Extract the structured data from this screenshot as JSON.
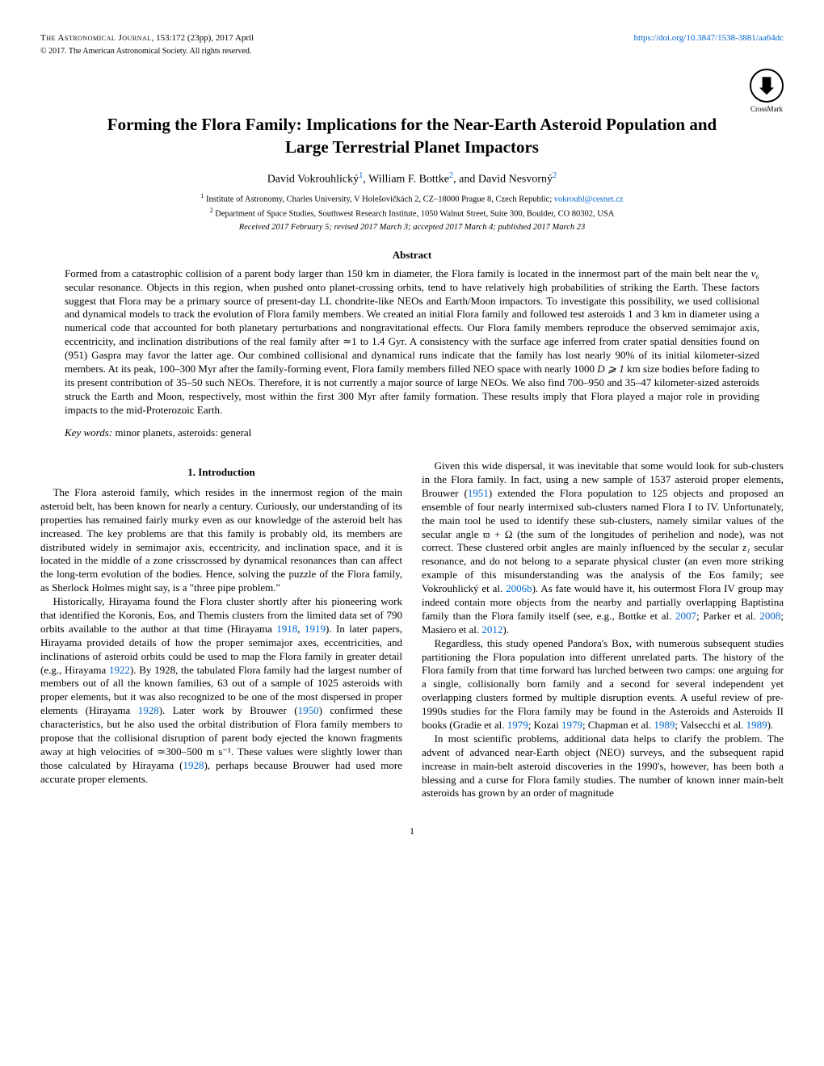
{
  "header": {
    "journal": "The Astronomical Journal",
    "citation": ", 153:172 (23pp), 2017 April",
    "doi_url": "https://doi.org/10.3847/1538-3881/aa64dc",
    "copyright": "© 2017. The American Astronomical Society. All rights reserved.",
    "crossmark_label": "CrossMark"
  },
  "title": "Forming the Flora Family: Implications for the Near-Earth Asteroid Population and Large Terrestrial Planet Impactors",
  "authors": {
    "a1": "David Vokrouhlický",
    "a1_sup": "1",
    "a2": ", William F. Bottke",
    "a2_sup": "2",
    "a3": ", and David Nesvorný",
    "a3_sup": "2"
  },
  "affiliations": {
    "aff1_sup": "1",
    "aff1": " Institute of Astronomy, Charles University, V Holešovičkách 2, CZ–18000 Prague 8, Czech Republic; ",
    "aff1_email": "vokrouhl@cesnet.cz",
    "aff2_sup": "2",
    "aff2": " Department of Space Studies, Southwest Research Institute, 1050 Walnut Street, Suite 300, Boulder, CO 80302, USA"
  },
  "dates": "Received 2017 February 5; revised 2017 March 3; accepted 2017 March 4; published 2017 March 23",
  "abstract": {
    "heading": "Abstract",
    "text_1": "Formed from a catastrophic collision of a parent body larger than 150 km in diameter, the Flora family is located in the innermost part of the main belt near the ",
    "nu6": "ν₆",
    "text_2": " secular resonance. Objects in this region, when pushed onto planet-crossing orbits, tend to have relatively high probabilities of striking the Earth. These factors suggest that Flora may be a primary source of present-day LL chondrite-like NEOs and Earth/Moon impactors. To investigate this possibility, we used collisional and dynamical models to track the evolution of Flora family members. We created an initial Flora family and followed test asteroids 1 and 3 km in diameter using a numerical code that accounted for both planetary perturbations and nongravitational effects. Our Flora family members reproduce the observed semimajor axis, eccentricity, and inclination distributions of the real family after ≃1 to 1.4 Gyr. A consistency with the surface age inferred from crater spatial densities found on (951) Gaspra may favor the latter age. Our combined collisional and dynamical runs indicate that the family has lost nearly 90% of its initial kilometer-sized members. At its peak, 100–300 Myr after the family-forming event, Flora family members filled NEO space with nearly 1000 ",
    "d_ge": "D ⩾ 1",
    "text_3": " km size bodies before fading to its present contribution of 35–50 such NEOs. Therefore, it is not currently a major source of large NEOs. We also find 700–950 and 35–47 kilometer-sized asteroids struck the Earth and Moon, respectively, most within the first 300 Myr after family formation. These results imply that Flora played a major role in providing impacts to the mid-Proterozoic Earth."
  },
  "keywords": {
    "label": "Key words:",
    "text": " minor planets, asteroids: general"
  },
  "section1_heading": "1. Introduction",
  "body": {
    "p1": "The Flora asteroid family, which resides in the innermost region of the main asteroid belt, has been known for nearly a century. Curiously, our understanding of its properties has remained fairly murky even as our knowledge of the asteroid belt has increased. The key problems are that this family is probably old, its members are distributed widely in semimajor axis, eccentricity, and inclination space, and it is located in the middle of a zone crisscrossed by dynamical resonances than can affect the long-term evolution of the bodies. Hence, solving the puzzle of the Flora family, as Sherlock Holmes might say, is a \"three pipe problem.\"",
    "p2_a": "Historically, Hirayama found the Flora cluster shortly after his pioneering work that identified the Koronis, Eos, and Themis clusters from the limited data set of 790 orbits available to the author at that time (Hirayama ",
    "p2_y1": "1918",
    "p2_b": ", ",
    "p2_y2": "1919",
    "p2_c": "). In later papers, Hirayama provided details of how the proper semimajor axes, eccentricities, and inclinations of asteroid orbits could be used to map the Flora family in greater detail (e.g., Hirayama ",
    "p2_y3": "1922",
    "p2_d": "). By 1928, the tabulated Flora family had the largest number of members out of all the known families, 63 out of a sample of 1025 asteroids with proper elements, but it was also recognized to be one of the most dispersed in proper elements (Hirayama ",
    "p2_y4": "1928",
    "p2_e": "). Later work by Brouwer (",
    "p2_y5": "1950",
    "p2_f": ") confirmed these characteristics, but he also used the orbital distribution of Flora family members to propose that the collisional disruption of parent body ejected the known fragments away at high velocities of ≃300–500 m s⁻¹. These values were slightly lower than those calculated by Hirayama (",
    "p2_y6": "1928",
    "p2_g": "), perhaps because Brouwer had used more accurate proper elements.",
    "p3_a": "Given this wide dispersal, it was inevitable that some would look for sub-clusters in the Flora family. In fact, using a new sample of 1537 asteroid proper elements, Brouwer (",
    "p3_y1": "1951",
    "p3_b": ") extended the Flora population to 125 objects and proposed an ensemble of four nearly intermixed sub-clusters named Flora I to IV. Unfortunately, the main tool he used to identify these sub-clusters, namely similar values of the secular angle ϖ + Ω (the sum of the longitudes of perihelion and node), was not correct. These clustered orbit angles are mainly influenced by the secular ",
    "p3_z1": "z₁",
    "p3_c": " secular resonance, and do not belong to a separate physical cluster (an even more striking example of this misunderstanding was the analysis of the Eos family; see Vokrouhlický et al. ",
    "p3_y2": "2006b",
    "p3_d": "). As fate would have it, his outermost Flora IV group may indeed contain more objects from the nearby and partially overlapping Baptistina family than the Flora family itself (see, e.g., Bottke et al. ",
    "p3_y3": "2007",
    "p3_e": "; Parker et al. ",
    "p3_y4": "2008",
    "p3_f": "; Masiero et al. ",
    "p3_y5": "2012",
    "p3_g": ").",
    "p4_a": "Regardless, this study opened Pandora's Box, with numerous subsequent studies partitioning the Flora population into different unrelated parts. The history of the Flora family from that time forward has lurched between two camps: one arguing for a single, collisionally born family and a second for several independent yet overlapping clusters formed by multiple disruption events. A useful review of pre-1990s studies for the Flora family may be found in the Asteroids and Asteroids II books (Gradie et al. ",
    "p4_y1": "1979",
    "p4_b": "; Kozai ",
    "p4_y2": "1979",
    "p4_c": "; Chapman et al. ",
    "p4_y3": "1989",
    "p4_d": "; Valsecchi et al. ",
    "p4_y4": "1989",
    "p4_e": ").",
    "p5": "In most scientific problems, additional data helps to clarify the problem. The advent of advanced near-Earth object (NEO) surveys, and the subsequent rapid increase in main-belt asteroid discoveries in the 1990's, however, has been both a blessing and a curse for Flora family studies. The number of known inner main-belt asteroids has grown by an order of magnitude"
  },
  "page_number": "1",
  "colors": {
    "link": "#0066cc",
    "text": "#000000",
    "background": "#ffffff"
  }
}
